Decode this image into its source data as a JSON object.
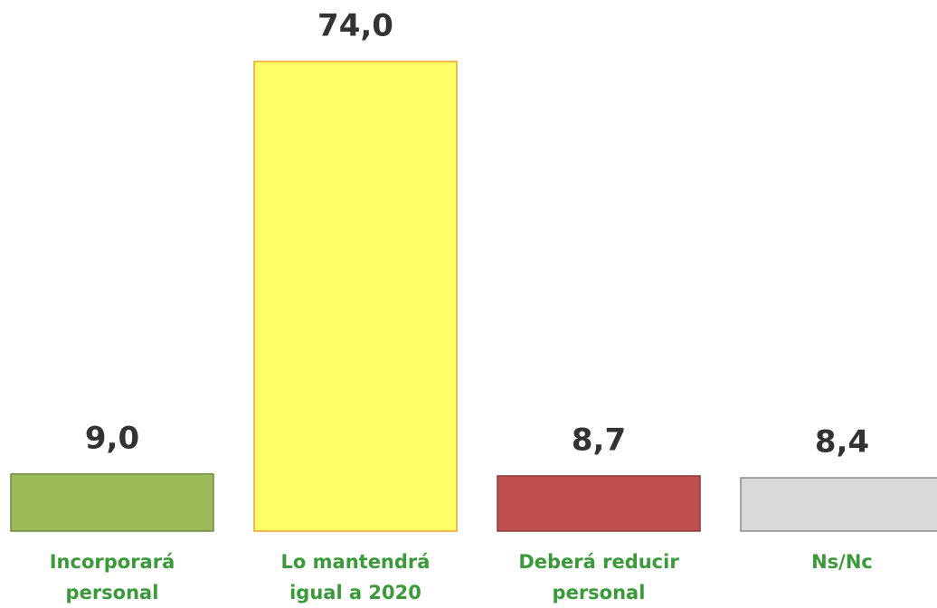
{
  "chart_data": {
    "type": "bar",
    "categories": [
      "Incorporará personal",
      "Lo mantendrá igual a 2020",
      "Deberá reducir personal",
      "Ns/Nc"
    ],
    "values": [
      9.0,
      74.0,
      8.7,
      8.4
    ],
    "value_labels": [
      "9,0",
      "74,0",
      "8,7",
      "8,4"
    ],
    "colors": [
      "#9bbb59",
      "#ffff66",
      "#c0504d",
      "#d9d9d9"
    ],
    "edgecolors": [
      "#6e8a3a",
      "#f0a030",
      "#8c3a38",
      "#8a8a8a"
    ]
  }
}
